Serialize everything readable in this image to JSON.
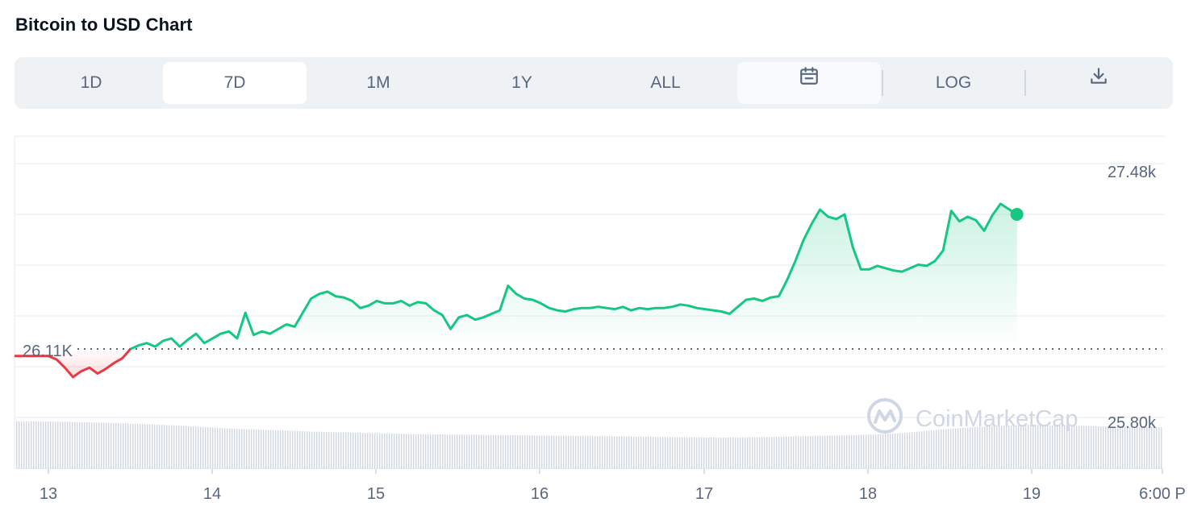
{
  "page": {
    "title": "Bitcoin to USD Chart"
  },
  "toolbar": {
    "tabs": [
      {
        "label": "1D",
        "active": false
      },
      {
        "label": "7D",
        "active": true
      },
      {
        "label": "1M",
        "active": false
      },
      {
        "label": "1Y",
        "active": false
      },
      {
        "label": "ALL",
        "active": false
      }
    ],
    "calendar_icon": "calendar-icon",
    "log_label": "LOG",
    "download_icon": "download-icon"
  },
  "chart_data": {
    "type": "area",
    "title": "",
    "x": [
      "13",
      "14",
      "15",
      "16",
      "17",
      "18",
      "19",
      "6:00 P"
    ],
    "y_labels": {
      "high": "27.48k",
      "reference": "26.11K",
      "low": "25.80k"
    },
    "reference_value": 26110,
    "ylim": [
      25800,
      27600
    ],
    "watermark": "CoinMarketCap",
    "colors": {
      "up": "#16c784",
      "down": "#ea3943",
      "grid": "#eff2f5",
      "volume": "#cfd6e4"
    },
    "price_points": [
      [
        0.0,
        26050
      ],
      [
        0.05,
        26020
      ],
      [
        0.1,
        25950
      ],
      [
        0.15,
        25870
      ],
      [
        0.2,
        25920
      ],
      [
        0.25,
        25950
      ],
      [
        0.3,
        25900
      ],
      [
        0.35,
        25940
      ],
      [
        0.4,
        25990
      ],
      [
        0.45,
        26030
      ],
      [
        0.5,
        26110
      ],
      [
        0.55,
        26140
      ],
      [
        0.6,
        26160
      ],
      [
        0.65,
        26130
      ],
      [
        0.7,
        26180
      ],
      [
        0.75,
        26200
      ],
      [
        0.8,
        26130
      ],
      [
        0.85,
        26190
      ],
      [
        0.9,
        26240
      ],
      [
        0.95,
        26160
      ],
      [
        1.0,
        26200
      ],
      [
        1.05,
        26240
      ],
      [
        1.1,
        26260
      ],
      [
        1.15,
        26200
      ],
      [
        1.2,
        26420
      ],
      [
        1.25,
        26230
      ],
      [
        1.3,
        26260
      ],
      [
        1.35,
        26240
      ],
      [
        1.4,
        26280
      ],
      [
        1.45,
        26320
      ],
      [
        1.5,
        26300
      ],
      [
        1.55,
        26420
      ],
      [
        1.6,
        26540
      ],
      [
        1.65,
        26580
      ],
      [
        1.7,
        26600
      ],
      [
        1.75,
        26560
      ],
      [
        1.8,
        26550
      ],
      [
        1.85,
        26520
      ],
      [
        1.9,
        26460
      ],
      [
        1.95,
        26480
      ],
      [
        2.0,
        26520
      ],
      [
        2.05,
        26500
      ],
      [
        2.1,
        26500
      ],
      [
        2.15,
        26520
      ],
      [
        2.2,
        26480
      ],
      [
        2.25,
        26510
      ],
      [
        2.3,
        26500
      ],
      [
        2.35,
        26440
      ],
      [
        2.4,
        26400
      ],
      [
        2.45,
        26280
      ],
      [
        2.5,
        26380
      ],
      [
        2.55,
        26400
      ],
      [
        2.6,
        26360
      ],
      [
        2.65,
        26380
      ],
      [
        2.7,
        26410
      ],
      [
        2.75,
        26440
      ],
      [
        2.8,
        26650
      ],
      [
        2.85,
        26580
      ],
      [
        2.9,
        26540
      ],
      [
        2.95,
        26530
      ],
      [
        3.0,
        26500
      ],
      [
        3.05,
        26460
      ],
      [
        3.1,
        26440
      ],
      [
        3.15,
        26430
      ],
      [
        3.2,
        26450
      ],
      [
        3.25,
        26460
      ],
      [
        3.3,
        26460
      ],
      [
        3.35,
        26470
      ],
      [
        3.4,
        26460
      ],
      [
        3.45,
        26450
      ],
      [
        3.5,
        26470
      ],
      [
        3.55,
        26440
      ],
      [
        3.6,
        26460
      ],
      [
        3.65,
        26450
      ],
      [
        3.7,
        26460
      ],
      [
        3.75,
        26460
      ],
      [
        3.8,
        26470
      ],
      [
        3.85,
        26490
      ],
      [
        3.9,
        26480
      ],
      [
        3.95,
        26460
      ],
      [
        4.0,
        26450
      ],
      [
        4.05,
        26440
      ],
      [
        4.1,
        26430
      ],
      [
        4.15,
        26410
      ],
      [
        4.2,
        26470
      ],
      [
        4.25,
        26530
      ],
      [
        4.3,
        26540
      ],
      [
        4.35,
        26520
      ],
      [
        4.4,
        26550
      ],
      [
        4.45,
        26560
      ],
      [
        4.5,
        26700
      ],
      [
        4.55,
        26860
      ],
      [
        4.6,
        27040
      ],
      [
        4.65,
        27180
      ],
      [
        4.7,
        27300
      ],
      [
        4.75,
        27240
      ],
      [
        4.8,
        27220
      ],
      [
        4.85,
        27260
      ],
      [
        4.9,
        26980
      ],
      [
        4.95,
        26790
      ],
      [
        5.0,
        26790
      ],
      [
        5.05,
        26820
      ],
      [
        5.1,
        26800
      ],
      [
        5.15,
        26780
      ],
      [
        5.2,
        26770
      ],
      [
        5.25,
        26800
      ],
      [
        5.3,
        26830
      ],
      [
        5.35,
        26820
      ],
      [
        5.4,
        26860
      ],
      [
        5.45,
        26950
      ],
      [
        5.5,
        27290
      ],
      [
        5.55,
        27200
      ],
      [
        5.6,
        27240
      ],
      [
        5.65,
        27210
      ],
      [
        5.7,
        27120
      ],
      [
        5.75,
        27250
      ],
      [
        5.8,
        27350
      ],
      [
        5.9,
        27260
      ]
    ],
    "volume_levels": [
      0.92,
      0.9,
      0.86,
      0.8,
      0.72,
      0.62,
      0.56,
      0.5,
      0.46,
      0.42,
      0.4,
      0.38,
      0.36,
      0.34,
      0.32,
      0.3,
      0.28,
      0.3,
      0.34,
      0.38,
      0.44,
      0.6,
      0.72,
      0.78,
      0.74,
      0.7,
      0.68
    ]
  }
}
